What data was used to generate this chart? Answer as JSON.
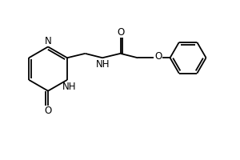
{
  "background_color": "#ffffff",
  "line_color": "#000000",
  "line_width": 1.3,
  "font_size": 8.5,
  "figsize": [
    3.0,
    2.0
  ],
  "dpi": 100,
  "xlim": [
    0,
    10
  ],
  "ylim": [
    0,
    6.67
  ]
}
